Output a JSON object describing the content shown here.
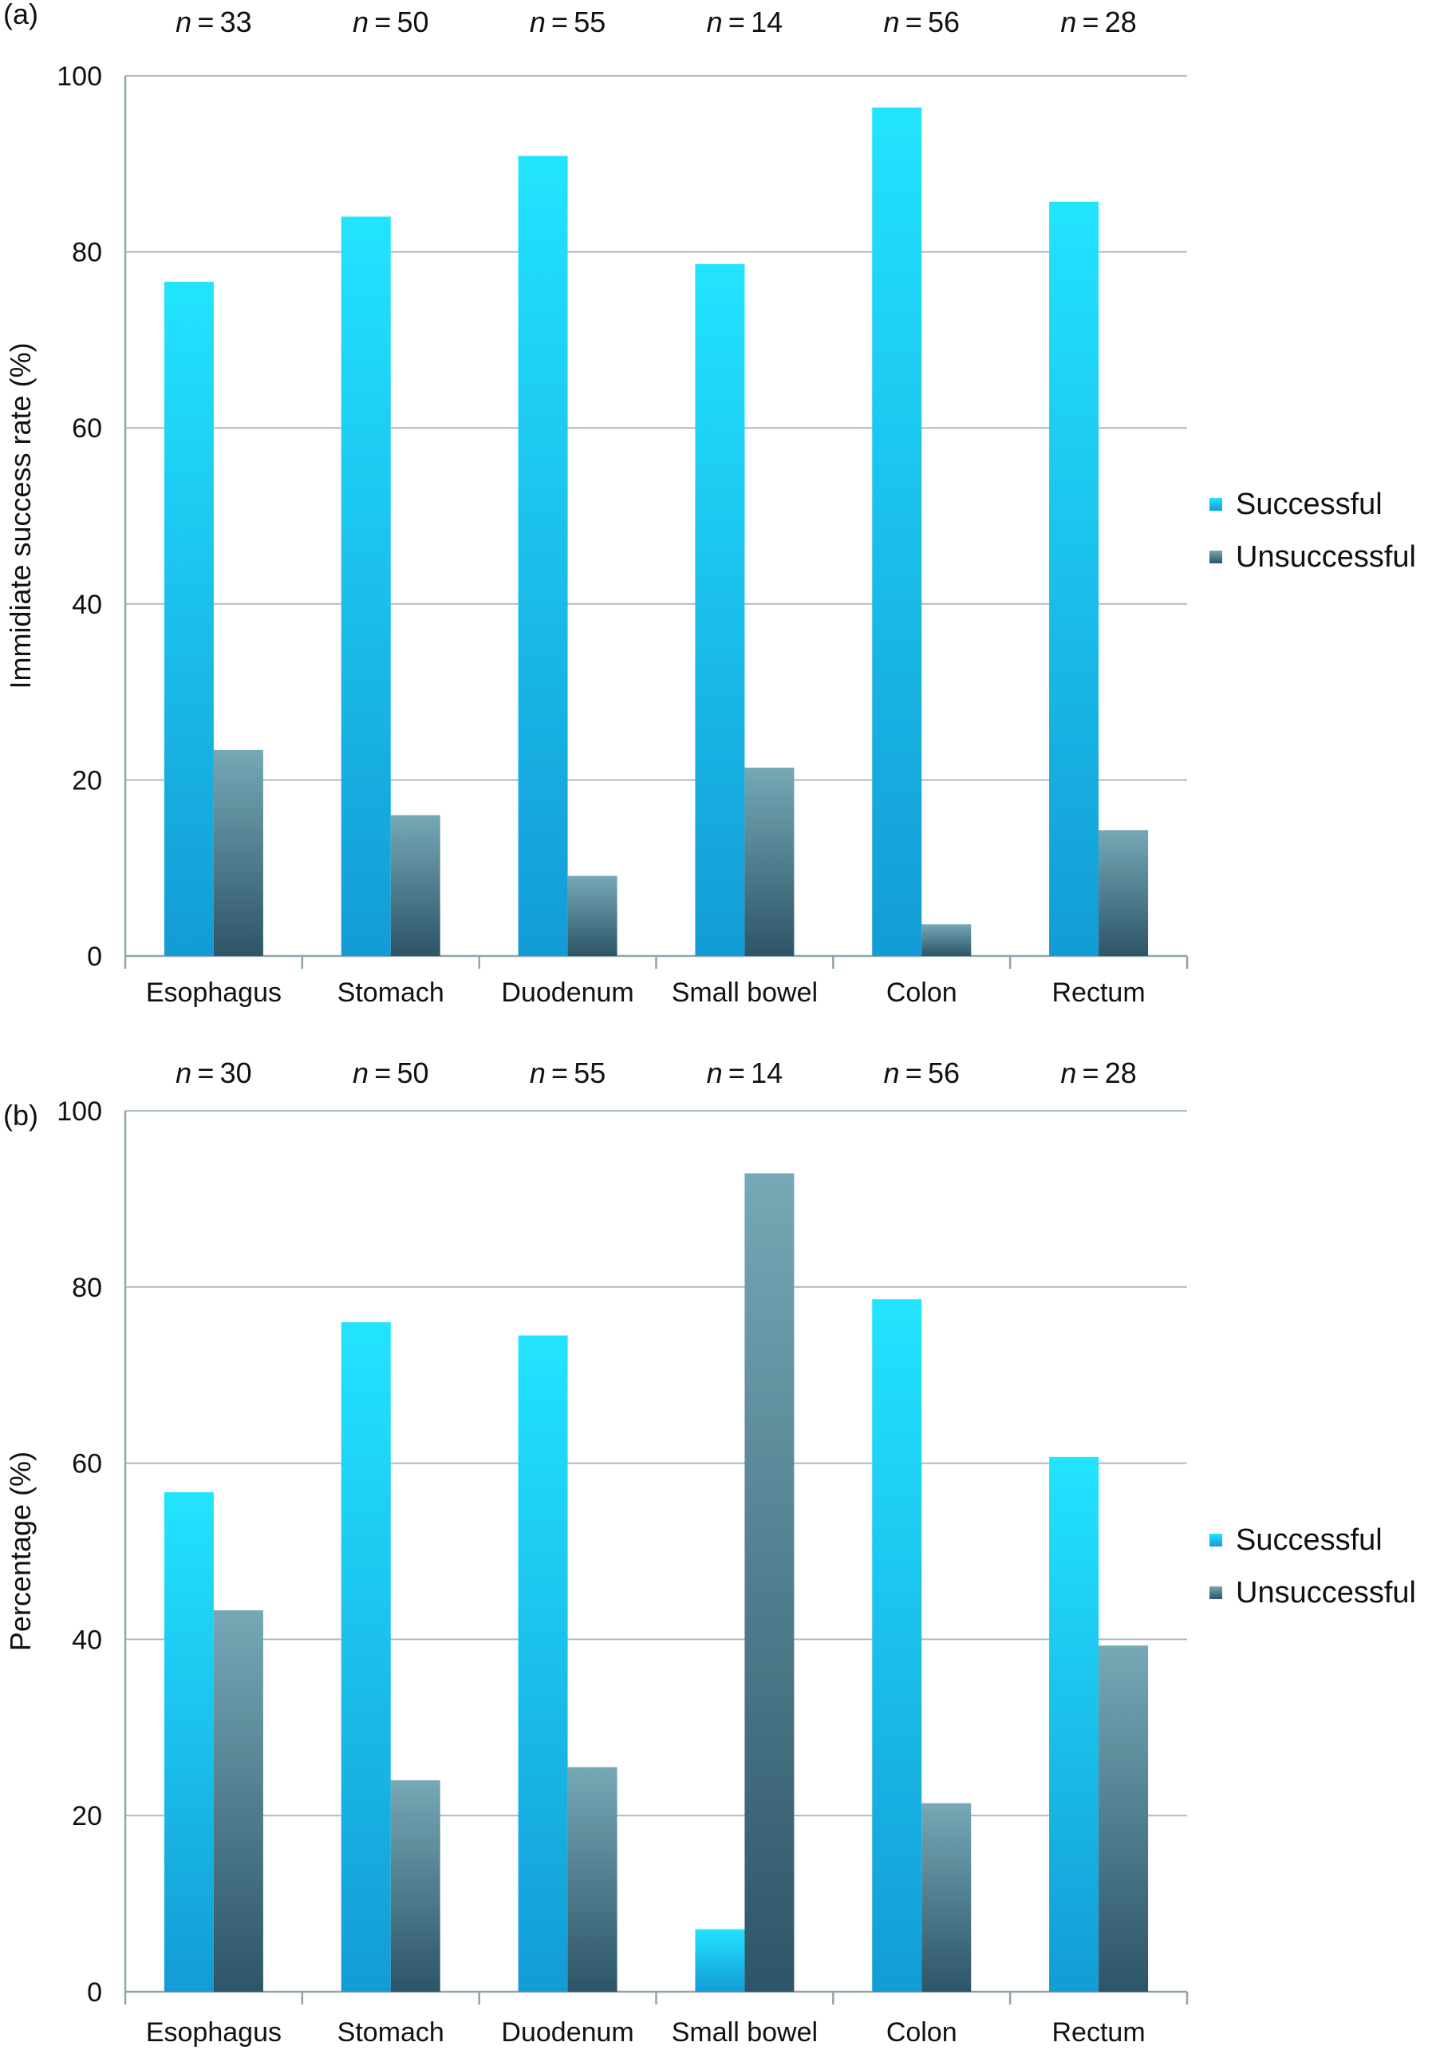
{
  "chart_data": [
    {
      "type": "bar",
      "panel_label": "(a)",
      "ylabel": "Immidiate success rate (%)",
      "ylim": [
        0,
        100
      ],
      "yticks": [
        0,
        20,
        40,
        60,
        80,
        100
      ],
      "grid": true,
      "legend_placement": "right",
      "categories": [
        "Esophagus",
        "Stomach",
        "Duodenum",
        "Small bowel",
        "Colon",
        "Rectum"
      ],
      "n_prefix": "n",
      "n_values": [
        33,
        50,
        55,
        14,
        56,
        28
      ],
      "series": [
        {
          "name": "Successful",
          "values": [
            76.6,
            84.0,
            90.9,
            78.6,
            96.4,
            85.7
          ]
        },
        {
          "name": "Unsuccessful",
          "values": [
            23.4,
            16.0,
            9.1,
            21.4,
            3.6,
            14.3
          ]
        }
      ]
    },
    {
      "type": "bar",
      "panel_label": "(b)",
      "ylabel": "Percentage (%)",
      "ylim": [
        0,
        100
      ],
      "yticks": [
        0,
        20,
        40,
        60,
        80,
        100
      ],
      "grid": true,
      "legend_placement": "right",
      "categories": [
        "Esophagus",
        "Stomach",
        "Duodenum",
        "Small bowel",
        "Colon",
        "Rectum"
      ],
      "n_prefix": "n",
      "n_values": [
        30,
        50,
        55,
        14,
        56,
        28
      ],
      "series": [
        {
          "name": "Successful",
          "values": [
            56.7,
            76.0,
            74.5,
            7.1,
            78.6,
            60.7
          ]
        },
        {
          "name": "Unsuccessful",
          "values": [
            43.3,
            24.0,
            25.5,
            92.9,
            21.4,
            39.3
          ]
        }
      ]
    }
  ],
  "colors": {
    "successful_top": "#22e4ff",
    "successful_bottom": "#139bd6",
    "unsuccessful_top": "#76a8b6",
    "unsuccessful_bottom": "#2d5567",
    "grid": "#a9bcc4",
    "axis": "#8fa5ae"
  }
}
